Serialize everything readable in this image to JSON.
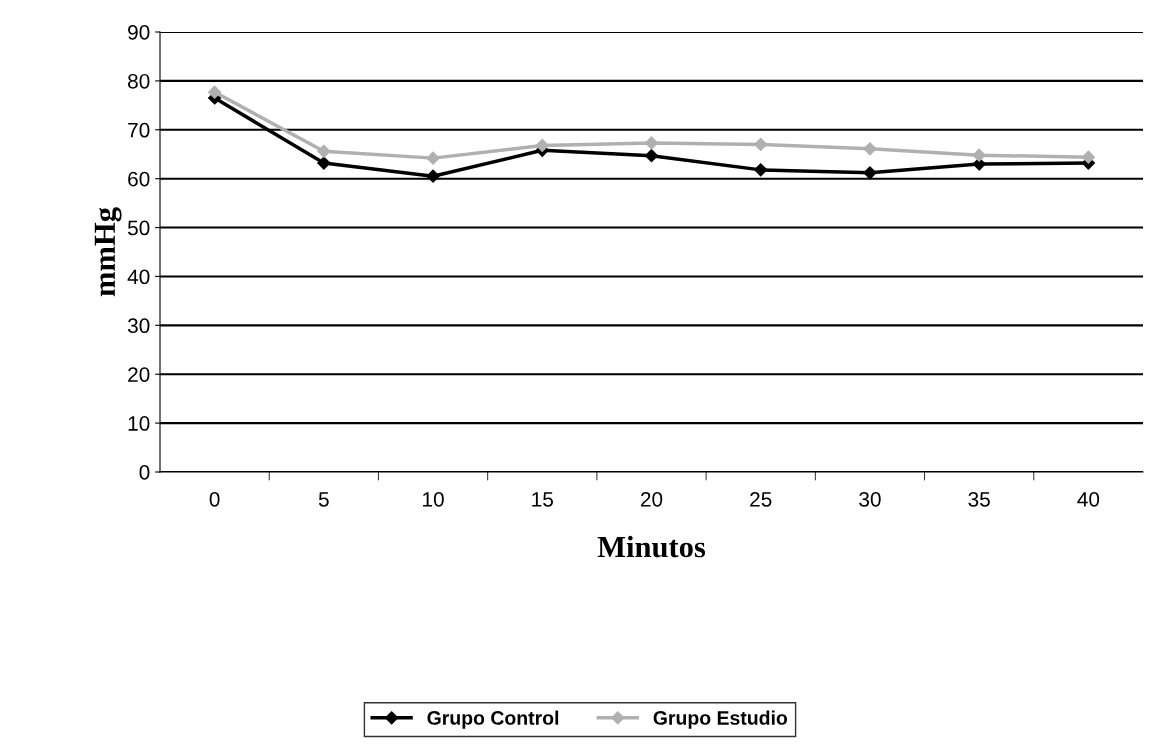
{
  "chart_data": {
    "type": "line",
    "xlabel": "Minutos",
    "ylabel": "mmHg",
    "categories": [
      "0",
      "5",
      "10",
      "15",
      "20",
      "25",
      "30",
      "35",
      "40"
    ],
    "series": [
      {
        "name": "Grupo Control",
        "color": "#000000",
        "values": [
          76.5,
          63.2,
          60.5,
          65.8,
          64.7,
          61.8,
          61.2,
          63.0,
          63.2
        ]
      },
      {
        "name": "Grupo Estudio",
        "color": "#b0b0b0",
        "values": [
          77.7,
          65.6,
          64.2,
          66.8,
          67.3,
          67.0,
          66.1,
          64.8,
          64.4
        ]
      }
    ],
    "ylim": [
      0,
      90
    ],
    "yticks": [
      0,
      10,
      20,
      30,
      40,
      50,
      60,
      70,
      80,
      90
    ],
    "grid": "y",
    "legend": "bottom",
    "marker": "diamond",
    "line_style": "solid"
  }
}
